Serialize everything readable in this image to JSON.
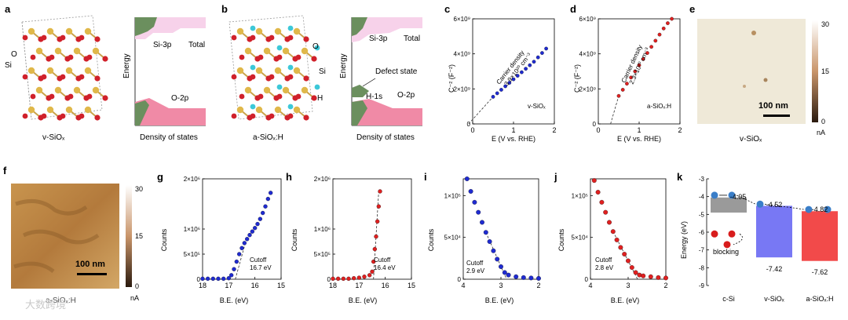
{
  "panels": {
    "a": {
      "label": "a",
      "atom_si": "Si",
      "atom_o": "O",
      "caption": "v-SiOₓ"
    },
    "a_dos": {
      "ylabel": "Energy",
      "xlabel": "Density of states",
      "si3p": "Si-3p",
      "total": "Total",
      "o2p": "O-2p"
    },
    "b": {
      "label": "b",
      "atom_o": "O",
      "atom_si": "Si",
      "atom_h": "H",
      "caption": "a-SiOₓ:H"
    },
    "b_dos": {
      "ylabel": "Energy",
      "xlabel": "Density of states",
      "si3p": "Si-3p",
      "total": "Total",
      "defect": "Defect state",
      "h1s": "H-1s",
      "o2p": "O-2p"
    },
    "c": {
      "label": "c",
      "ylabel": "C⁻² (F⁻²)",
      "xlabel": "E (V vs. RHE)",
      "legend": "v-SiOₓ",
      "annotation_line1": "Carrier density",
      "annotation_line2": "3.9×10²⁰ cm⁻³"
    },
    "d": {
      "label": "d",
      "ylabel": "C⁻² (F⁻²)",
      "xlabel": "E (V vs. RHE)",
      "legend": "a-SiOₓ:H",
      "annotation_line1": "Carrier density",
      "annotation_line2": "2.3×10²⁰ cm⁻³"
    },
    "e": {
      "label": "e",
      "caption": "v-SiOₓ",
      "scale": "100 nm",
      "cb_top": "30",
      "cb_mid": "15",
      "cb_bot": "0",
      "cb_unit": "nA"
    },
    "f": {
      "label": "f",
      "caption": "a-SiOₓ:H",
      "scale": "100 nm",
      "cb_top": "30",
      "cb_mid": "15",
      "cb_bot": "0",
      "cb_unit": "nA"
    },
    "g": {
      "label": "g",
      "ylabel": "Counts",
      "xlabel": "B.E. (eV)",
      "cutoff": "Cutoff",
      "cutoff_val": "16.7 eV"
    },
    "h": {
      "label": "h",
      "ylabel": "Counts",
      "xlabel": "B.E. (eV)",
      "cutoff": "Cutoff",
      "cutoff_val": "16.4 eV"
    },
    "i": {
      "label": "i",
      "ylabel": "Counts",
      "xlabel": "B.E. (eV)",
      "cutoff": "Cutoff",
      "cutoff_val": "2.9 eV"
    },
    "j": {
      "label": "j",
      "ylabel": "Counts",
      "xlabel": "B.E. (eV)",
      "cutoff": "Cutoff",
      "cutoff_val": "2.8 eV"
    },
    "k": {
      "label": "k",
      "ylabel": "Energy (eV)",
      "blocking": "blocking",
      "v1": "-4.05",
      "v2": "-4.52",
      "v3": "-4.82",
      "v4": "-7.42",
      "v5": "-7.62",
      "x1": "c-Si",
      "x2": "v-SiOₓ",
      "x3": "a-SiOₓ:H"
    }
  },
  "watermark": "大数跨境",
  "colors": {
    "blue": "#1f2bd1",
    "red": "#e02020",
    "dos_green": "#6b8f5e",
    "dos_pink": "#f08aa6",
    "dos_light": "#f7d2ea",
    "k_blue": "#6f6ff2",
    "k_red": "#f24a4a"
  },
  "chart_data": [
    {
      "type": "line",
      "title": "c",
      "xlabel": "E (V vs. RHE)",
      "ylabel": "C⁻² (F⁻²)",
      "xlim": [
        0,
        2
      ],
      "ylim": [
        0,
        6000000000.0
      ],
      "xticks": [
        "0",
        "1",
        "2"
      ],
      "yticks": [
        "0",
        "2×10⁹",
        "4×10⁹",
        "6×10⁹"
      ],
      "series": [
        {
          "name": "v-SiOₓ",
          "x": [
            0.5,
            0.6,
            0.7,
            0.8,
            0.9,
            1.0,
            1.1,
            1.2,
            1.3,
            1.4,
            1.5,
            1.6,
            1.7,
            1.8
          ],
          "y": [
            1550000000.0,
            1750000000.0,
            1950000000.0,
            2150000000.0,
            2350000000.0,
            2550000000.0,
            2750000000.0,
            2950000000.0,
            3150000000.0,
            3350000000.0,
            3550000000.0,
            3800000000.0,
            4050000000.0,
            4300000000.0
          ]
        }
      ],
      "fit_x_intercept": -0.1
    },
    {
      "type": "line",
      "title": "d",
      "xlabel": "E (V vs. RHE)",
      "ylabel": "C⁻² (F⁻²)",
      "xlim": [
        0,
        2
      ],
      "ylim": [
        0,
        6000000000.0
      ],
      "xticks": [
        "0",
        "1",
        "2"
      ],
      "yticks": [
        "0",
        "2×10⁹",
        "4×10⁹",
        "6×10⁹"
      ],
      "series": [
        {
          "name": "a-SiOₓ:H",
          "x": [
            0.5,
            0.6,
            0.7,
            0.8,
            0.9,
            1.0,
            1.1,
            1.2,
            1.3,
            1.4,
            1.5,
            1.6,
            1.7,
            1.8
          ],
          "y": [
            1600000000.0,
            1950000000.0,
            2300000000.0,
            2650000000.0,
            3000000000.0,
            3350000000.0,
            3700000000.0,
            4050000000.0,
            4400000000.0,
            4750000000.0,
            5100000000.0,
            5450000000.0,
            5750000000.0,
            6000000000.0
          ]
        }
      ],
      "fit_x_intercept": 0.3
    },
    {
      "type": "scatter",
      "title": "g",
      "xlabel": "B.E. (eV)",
      "ylabel": "Counts",
      "xlim": [
        18,
        15
      ],
      "ylim": [
        0,
        2000000.0
      ],
      "xticks": [
        "18",
        "17",
        "16",
        "15"
      ],
      "yticks": [
        "0",
        "5×10⁵",
        "1×10⁶",
        "2×10⁶"
      ],
      "series": [
        {
          "name": "g",
          "x": [
            18,
            17.8,
            17.6,
            17.4,
            17.2,
            17.0,
            16.9,
            16.8,
            16.7,
            16.6,
            16.5,
            16.4,
            16.3,
            16.2,
            16.1,
            16.0,
            15.9,
            15.8,
            15.7,
            15.6,
            15.5,
            15.4
          ],
          "y": [
            10000.0,
            10000.0,
            10000.0,
            10000.0,
            10000.0,
            20000.0,
            80000.0,
            200000.0,
            350000.0,
            500000.0,
            620000.0,
            720000.0,
            800000.0,
            880000.0,
            950000.0,
            1020000.0,
            1100000.0,
            1200000.0,
            1320000.0,
            1450000.0,
            1600000.0,
            1720000.0
          ]
        }
      ],
      "cutoff": 16.7
    },
    {
      "type": "scatter",
      "title": "h",
      "xlabel": "B.E. (eV)",
      "ylabel": "Counts",
      "xlim": [
        18,
        15
      ],
      "ylim": [
        0,
        2000000.0
      ],
      "xticks": [
        "18",
        "17",
        "16",
        "15"
      ],
      "yticks": [
        "0",
        "5×10⁵",
        "1×10⁶",
        "2×10⁶"
      ],
      "series": [
        {
          "name": "h",
          "x": [
            18,
            17.8,
            17.6,
            17.4,
            17.2,
            17.0,
            16.8,
            16.6,
            16.5,
            16.45,
            16.4,
            16.35,
            16.3,
            16.25,
            16.2
          ],
          "y": [
            10000.0,
            10000.0,
            10000.0,
            10000.0,
            20000.0,
            30000.0,
            50000.0,
            80000.0,
            150000.0,
            350000.0,
            600000.0,
            850000.0,
            1150000.0,
            1450000.0,
            1750000.0
          ]
        }
      ],
      "cutoff": 16.4
    },
    {
      "type": "scatter",
      "title": "i",
      "xlabel": "B.E. (eV)",
      "ylabel": "Counts",
      "xlim": [
        4,
        2
      ],
      "ylim": [
        0,
        120000.0
      ],
      "xticks": [
        "4",
        "3",
        "2"
      ],
      "yticks": [
        "0",
        "5×10⁴",
        "1×10⁵"
      ],
      "series": [
        {
          "name": "i",
          "x": [
            3.9,
            3.8,
            3.7,
            3.6,
            3.5,
            3.4,
            3.3,
            3.2,
            3.1,
            3.0,
            2.9,
            2.8,
            2.6,
            2.4,
            2.2,
            2.0
          ],
          "y": [
            120000.0,
            105000.0,
            92000.0,
            80000.0,
            68000.0,
            56000.0,
            45000.0,
            34000.0,
            24000.0,
            15000.0,
            8000.0,
            5000.0,
            3000.0,
            2000.0,
            1500.0,
            1000.0
          ]
        }
      ],
      "cutoff": 2.9
    },
    {
      "type": "scatter",
      "title": "j",
      "xlabel": "B.E. (eV)",
      "ylabel": "Counts",
      "xlim": [
        4,
        2
      ],
      "ylim": [
        0,
        120000.0
      ],
      "xticks": [
        "4",
        "3",
        "2"
      ],
      "yticks": [
        "0",
        "5×10⁴",
        "1×10⁵"
      ],
      "series": [
        {
          "name": "j",
          "x": [
            3.9,
            3.8,
            3.7,
            3.6,
            3.5,
            3.4,
            3.3,
            3.2,
            3.1,
            3.0,
            2.9,
            2.8,
            2.7,
            2.6,
            2.4,
            2.2,
            2.0
          ],
          "y": [
            118000.0,
            104000.0,
            92000.0,
            80000.0,
            68000.0,
            57000.0,
            47000.0,
            38000.0,
            30000.0,
            22000.0,
            14000.0,
            8000.0,
            5000.0,
            4000.0,
            3000.0,
            2000.0,
            1500.0
          ]
        }
      ],
      "cutoff": 2.8
    },
    {
      "type": "bar",
      "title": "k",
      "ylabel": "Energy (eV)",
      "ylim": [
        -9,
        -3
      ],
      "categories": [
        "c-Si",
        "v-SiOₓ",
        "a-SiOₓ:H"
      ],
      "yticks": [
        "-3",
        "-4",
        "-5",
        "-6",
        "-7",
        "-8",
        "-9"
      ],
      "top": [
        -4.05,
        -4.52,
        -4.82
      ],
      "bottom": [
        null,
        -7.42,
        -7.62
      ]
    }
  ]
}
